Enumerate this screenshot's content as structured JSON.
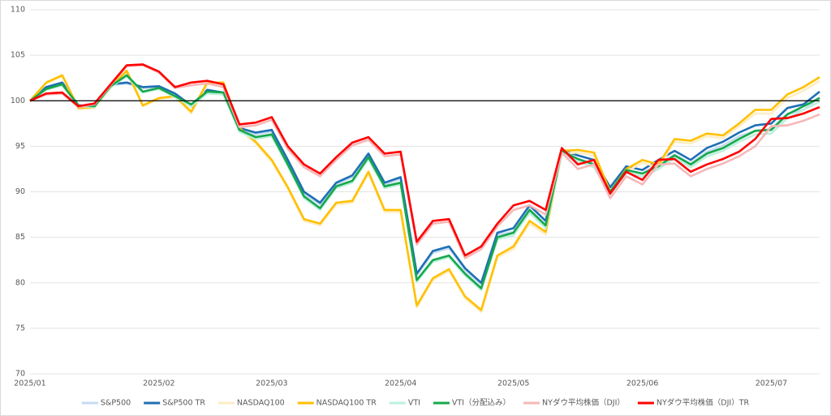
{
  "chart_data": {
    "type": "line",
    "categories": [
      "2025/01",
      null,
      null,
      null,
      null,
      null,
      null,
      null,
      "2025/02",
      null,
      null,
      null,
      null,
      null,
      null,
      "2025/03",
      null,
      null,
      null,
      null,
      null,
      null,
      null,
      "2025/04",
      null,
      null,
      null,
      null,
      null,
      null,
      "2025/05",
      null,
      null,
      null,
      null,
      null,
      null,
      null,
      "2025/06",
      null,
      null,
      null,
      null,
      null,
      null,
      null,
      "2025/07",
      null,
      null,
      null
    ],
    "ylim": [
      70,
      110
    ],
    "yticks": [
      70,
      75,
      80,
      85,
      90,
      95,
      100,
      105,
      110
    ],
    "grid": true,
    "hline": 100,
    "legend": "bottom",
    "series": [
      {
        "name": "S&P500",
        "color": "#c5dcf2",
        "values": [
          100,
          101.4,
          101.9,
          99.4,
          99.3,
          101.7,
          101.9,
          101.4,
          101.5,
          100.7,
          99.3,
          101,
          100.7,
          96.8,
          96.3,
          96.6,
          93.3,
          89.8,
          88.6,
          90.8,
          91.6,
          94,
          90.8,
          91.4,
          80.8,
          83.3,
          83.8,
          81.4,
          79.8,
          85.3,
          85.6,
          88.1,
          86.4,
          94.2,
          93.6,
          93.1,
          90.1,
          92.4,
          92,
          93.1,
          94.1,
          93.1,
          94.4,
          95.1,
          96.1,
          96.7,
          96.9,
          98.6,
          99,
          100.4
        ]
      },
      {
        "name": "S&P500 TR",
        "color": "#1f6fb4",
        "values": [
          100,
          101.5,
          102,
          99.5,
          99.4,
          101.8,
          102,
          101.5,
          101.6,
          100.8,
          99.5,
          101.2,
          100.9,
          97,
          96.5,
          96.8,
          93.5,
          90,
          88.8,
          91,
          91.8,
          94.2,
          91,
          91.6,
          81,
          83.5,
          84,
          81.6,
          80,
          85.5,
          86,
          88.5,
          86.8,
          94.6,
          94,
          93.5,
          90.5,
          92.8,
          92.4,
          93.5,
          94.5,
          93.5,
          94.8,
          95.5,
          96.5,
          97.3,
          97.5,
          99.2,
          99.6,
          101
        ]
      },
      {
        "name": "NASDAQ100",
        "color": "#fdedc4",
        "values": [
          100,
          101.9,
          102.7,
          99.1,
          99.2,
          101.4,
          103.2,
          99.4,
          100.2,
          100.4,
          98.6,
          101.8,
          101.8,
          96.8,
          95.3,
          93.3,
          90.3,
          86.8,
          86.3,
          88.6,
          88.8,
          92,
          87.8,
          87.8,
          77.3,
          80.3,
          81.3,
          78.3,
          76.8,
          82.8,
          83.7,
          86.5,
          85.3,
          94.2,
          94.3,
          94,
          89.7,
          92.2,
          93.2,
          92.7,
          95.5,
          95.3,
          96.1,
          95.9,
          97.2,
          98.6,
          98.6,
          100.3,
          101.1,
          102.2
        ]
      },
      {
        "name": "NASDAQ100 TR",
        "color": "#ffc000",
        "values": [
          100,
          102,
          102.8,
          99.2,
          99.3,
          101.5,
          103.3,
          99.5,
          100.3,
          100.5,
          98.8,
          102,
          102,
          97,
          95.5,
          93.5,
          90.5,
          87,
          86.5,
          88.8,
          89,
          92.2,
          88,
          88,
          77.5,
          80.5,
          81.5,
          78.5,
          77,
          83,
          84,
          86.8,
          85.6,
          94.5,
          94.6,
          94.3,
          90,
          92.5,
          93.5,
          93,
          95.8,
          95.6,
          96.4,
          96.2,
          97.5,
          99,
          99,
          100.7,
          101.5,
          102.6
        ]
      },
      {
        "name": "VTI",
        "color": "#bdf0dd",
        "values": [
          100,
          101.2,
          101.7,
          99.4,
          99.3,
          101.5,
          102.7,
          100.9,
          101.3,
          100.4,
          99.4,
          100.8,
          100.7,
          96.6,
          95.8,
          96.1,
          92.8,
          89.3,
          88,
          90.4,
          91,
          93.6,
          90.4,
          90.8,
          80.1,
          82.3,
          82.8,
          80.8,
          79.2,
          84.8,
          85.2,
          87.7,
          86,
          94.2,
          93.3,
          92.7,
          89.7,
          92.1,
          91.7,
          92.5,
          93.7,
          92.7,
          93.9,
          94.5,
          95.5,
          96.3,
          96.4,
          98.1,
          99,
          99.9
        ]
      },
      {
        "name": "VTI（分配込み）",
        "color": "#15a84a",
        "values": [
          100,
          101.3,
          101.8,
          99.5,
          99.4,
          101.6,
          102.8,
          101,
          101.4,
          100.5,
          99.6,
          101,
          100.9,
          96.8,
          96,
          96.3,
          93,
          89.5,
          88.2,
          90.6,
          91.2,
          93.8,
          90.6,
          91,
          80.3,
          82.5,
          83,
          81,
          79.4,
          85,
          85.5,
          88,
          86.3,
          94.5,
          93.6,
          93,
          90,
          92.4,
          92,
          92.8,
          94,
          93,
          94.2,
          94.8,
          95.8,
          96.7,
          96.8,
          98.5,
          99.4,
          100.3
        ]
      },
      {
        "name": "NYダウ平均株価（DJI）",
        "color": "#f5b8b8",
        "values": [
          100,
          100.7,
          100.8,
          99.3,
          99.6,
          101.7,
          103.8,
          103.9,
          103.1,
          101.4,
          101.7,
          101.9,
          101.5,
          97.1,
          97.3,
          97.9,
          94.7,
          92.7,
          91.7,
          93.5,
          95.1,
          95.7,
          93.9,
          94.1,
          84.2,
          86.5,
          86.7,
          82.7,
          83.7,
          86.2,
          88,
          88.5,
          87.5,
          94.3,
          92.5,
          93,
          89.3,
          91.7,
          90.8,
          93,
          93.1,
          91.7,
          92.5,
          93.1,
          93.9,
          95,
          97.2,
          97.3,
          97.8,
          98.5
        ]
      },
      {
        "name": "NYダウ平均株価（DJI）TR",
        "color": "#ff0000",
        "values": [
          100,
          100.8,
          100.9,
          99.4,
          99.7,
          101.8,
          103.9,
          104,
          103.2,
          101.5,
          102,
          102.2,
          101.8,
          97.4,
          97.6,
          98.2,
          95,
          93,
          92,
          93.8,
          95.4,
          96,
          94.2,
          94.4,
          84.5,
          86.8,
          87,
          83,
          84,
          86.5,
          88.5,
          89,
          88,
          94.8,
          93,
          93.5,
          89.8,
          92.2,
          91.3,
          93.5,
          93.6,
          92.2,
          93,
          93.6,
          94.4,
          95.8,
          98,
          98.1,
          98.6,
          99.3
        ]
      }
    ]
  }
}
